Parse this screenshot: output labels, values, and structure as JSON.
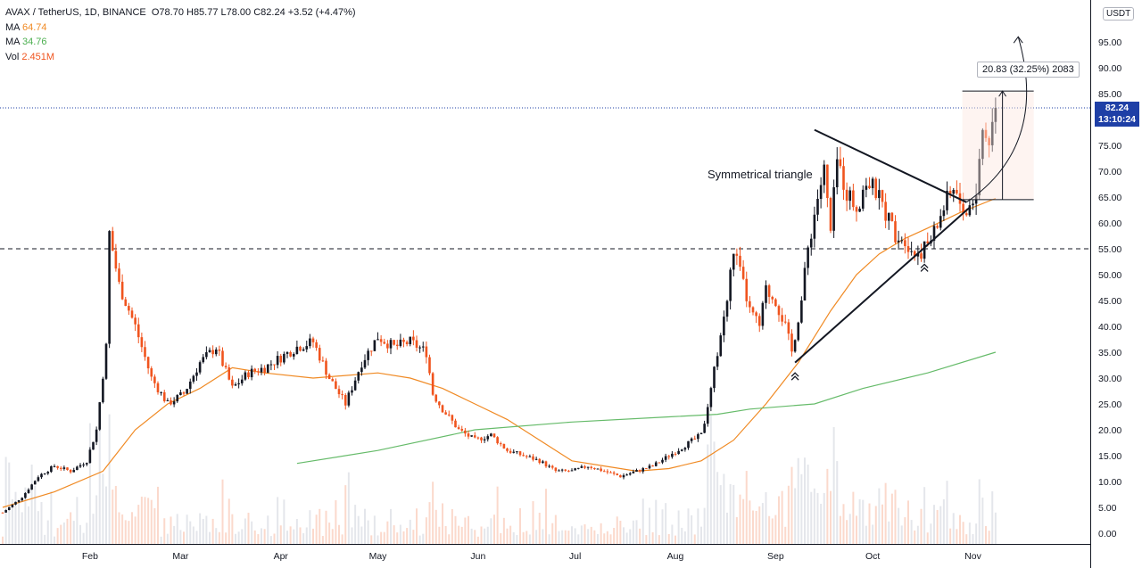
{
  "header": {
    "symbol": "AVAX / TetherUS, 1D, BINANCE",
    "ohlc": "O78.70  H85.77  L78.00  C82.24  +3.52 (+4.47%)",
    "ma1_label": "MA",
    "ma1_value": "64.74",
    "ma2_label": "MA",
    "ma2_value": "34.76",
    "vol_label": "Vol",
    "vol_value": "2.451M"
  },
  "price_tag": {
    "price": "82.24",
    "countdown": "13:10:24"
  },
  "currency": "USDT",
  "measure_label": "20.83 (32.25%) 2083",
  "annotation": "Symmetrical triangle",
  "colors": {
    "up": "#131722",
    "down": "#f0541e",
    "ma1": "#f08a24",
    "ma2": "#66bb6a",
    "price_line": "#1e3fa6"
  },
  "chart_data": {
    "type": "candlestick",
    "y_ticks": [
      "0.00",
      "5.00",
      "10.00",
      "15.00",
      "20.00",
      "25.00",
      "30.00",
      "35.00",
      "40.00",
      "45.00",
      "50.00",
      "55.00",
      "60.00",
      "65.00",
      "70.00",
      "75.00",
      "80.00",
      "85.00",
      "90.00",
      "95.00"
    ],
    "ylim": [
      0,
      100
    ],
    "x_ticks": [
      "Feb",
      "Mar",
      "Apr",
      "May",
      "Jun",
      "Jul",
      "Aug",
      "Sep",
      "Oct",
      "Nov"
    ],
    "x_tick_days": [
      31,
      59,
      90,
      120,
      151,
      181,
      212,
      243,
      273,
      304
    ],
    "xlim": [
      4,
      318
    ],
    "horizontal_level": 55,
    "current_price": 82.24,
    "close_anchors": [
      [
        4,
        4
      ],
      [
        10,
        7
      ],
      [
        15,
        11
      ],
      [
        20,
        13
      ],
      [
        25,
        12
      ],
      [
        30,
        14
      ],
      [
        33,
        20
      ],
      [
        36,
        36
      ],
      [
        37,
        58
      ],
      [
        40,
        48
      ],
      [
        45,
        40
      ],
      [
        50,
        30
      ],
      [
        55,
        25
      ],
      [
        60,
        27
      ],
      [
        65,
        33
      ],
      [
        70,
        36
      ],
      [
        75,
        28
      ],
      [
        80,
        31
      ],
      [
        85,
        32
      ],
      [
        90,
        34
      ],
      [
        95,
        36
      ],
      [
        100,
        37
      ],
      [
        105,
        30
      ],
      [
        110,
        25
      ],
      [
        115,
        33
      ],
      [
        120,
        38
      ],
      [
        125,
        36
      ],
      [
        130,
        37
      ],
      [
        135,
        35
      ],
      [
        137,
        27
      ],
      [
        140,
        24
      ],
      [
        145,
        20
      ],
      [
        150,
        18
      ],
      [
        155,
        19
      ],
      [
        160,
        16
      ],
      [
        165,
        15
      ],
      [
        170,
        14
      ],
      [
        175,
        12
      ],
      [
        180,
        12
      ],
      [
        185,
        13
      ],
      [
        190,
        12
      ],
      [
        195,
        11
      ],
      [
        200,
        12
      ],
      [
        205,
        13
      ],
      [
        210,
        15
      ],
      [
        215,
        17
      ],
      [
        220,
        19
      ],
      [
        222,
        24
      ],
      [
        225,
        35
      ],
      [
        228,
        45
      ],
      [
        230,
        55
      ],
      [
        233,
        48
      ],
      [
        235,
        43
      ],
      [
        238,
        40
      ],
      [
        240,
        47
      ],
      [
        243,
        45
      ],
      [
        246,
        40
      ],
      [
        248,
        35
      ],
      [
        251,
        45
      ],
      [
        253,
        55
      ],
      [
        256,
        65
      ],
      [
        258,
        70
      ],
      [
        260,
        58
      ],
      [
        262,
        72
      ],
      [
        265,
        66
      ],
      [
        268,
        63
      ],
      [
        271,
        68
      ],
      [
        274,
        66
      ],
      [
        277,
        62
      ],
      [
        280,
        58
      ],
      [
        283,
        57
      ],
      [
        286,
        54
      ],
      [
        289,
        55
      ],
      [
        292,
        58
      ],
      [
        295,
        63
      ],
      [
        298,
        67
      ],
      [
        300,
        64
      ],
      [
        302,
        62
      ],
      [
        305,
        66
      ],
      [
        307,
        78
      ],
      [
        309,
        76
      ],
      [
        311,
        82.24
      ]
    ],
    "ma_long": {
      "label": "MA",
      "value_last": 34.76,
      "start_day": 95,
      "points": [
        [
          95,
          13.5
        ],
        [
          120,
          16
        ],
        [
          150,
          20
        ],
        [
          180,
          21.5
        ],
        [
          210,
          22.5
        ],
        [
          225,
          23
        ],
        [
          235,
          24
        ],
        [
          255,
          25
        ],
        [
          270,
          28
        ],
        [
          290,
          31
        ],
        [
          311,
          35
        ]
      ]
    },
    "ma_short": {
      "label": "MA",
      "value_last": 64.74,
      "points": [
        [
          4,
          5
        ],
        [
          20,
          8
        ],
        [
          35,
          12
        ],
        [
          45,
          20
        ],
        [
          55,
          25
        ],
        [
          65,
          28
        ],
        [
          75,
          32
        ],
        [
          85,
          31
        ],
        [
          100,
          30
        ],
        [
          120,
          31
        ],
        [
          130,
          30
        ],
        [
          140,
          28
        ],
        [
          150,
          25
        ],
        [
          160,
          22
        ],
        [
          170,
          18
        ],
        [
          180,
          14
        ],
        [
          190,
          13
        ],
        [
          200,
          12
        ],
        [
          210,
          12.5
        ],
        [
          220,
          14
        ],
        [
          230,
          18
        ],
        [
          240,
          25
        ],
        [
          250,
          33
        ],
        [
          260,
          43
        ],
        [
          268,
          50
        ],
        [
          275,
          54
        ],
        [
          283,
          57
        ],
        [
          290,
          59
        ],
        [
          300,
          62
        ],
        [
          311,
          64.74
        ]
      ]
    },
    "triangle": {
      "upper": [
        [
          255,
          78
        ],
        [
          302,
          64
        ]
      ],
      "lower": [
        [
          249,
          33
        ],
        [
          303,
          63
        ]
      ]
    },
    "measure": {
      "from": 64.5,
      "to": 85.5,
      "day": 309
    },
    "arrow_curve": [
      [
        302,
        64
      ],
      [
        311,
        75
      ],
      [
        318,
        96
      ]
    ]
  }
}
